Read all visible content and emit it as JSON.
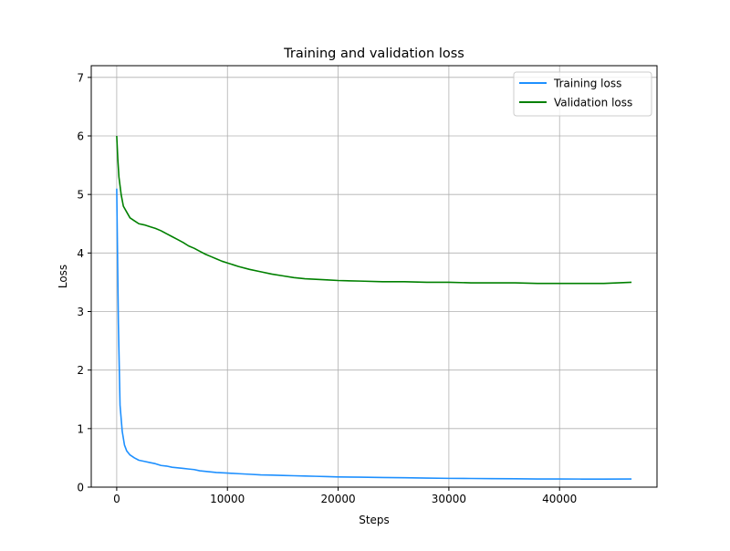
{
  "chart_data": {
    "type": "line",
    "title": "Training and validation loss",
    "xlabel": "Steps",
    "ylabel": "Loss",
    "xlim": [
      -2300,
      48800
    ],
    "ylim": [
      0,
      7.2
    ],
    "xticks": [
      0,
      10000,
      20000,
      30000,
      40000
    ],
    "yticks": [
      0,
      1,
      2,
      3,
      4,
      5,
      6,
      7
    ],
    "grid": true,
    "legend_position": "top-right",
    "series": [
      {
        "name": "Training loss",
        "color": "#1e90ff",
        "x": [
          0,
          150,
          300,
          500,
          700,
          900,
          1200,
          1600,
          2000,
          2500,
          3000,
          3500,
          4000,
          4500,
          5000,
          5500,
          6000,
          6500,
          7000,
          7500,
          8000,
          9000,
          10000,
          11000,
          12000,
          13000,
          14000,
          15000,
          16000,
          17000,
          18000,
          19000,
          20000,
          22000,
          24000,
          26000,
          28000,
          30000,
          32000,
          34000,
          36000,
          38000,
          40000,
          42000,
          44000,
          46500
        ],
        "y": [
          5.1,
          2.8,
          1.4,
          0.95,
          0.72,
          0.62,
          0.55,
          0.5,
          0.46,
          0.44,
          0.42,
          0.4,
          0.37,
          0.36,
          0.34,
          0.33,
          0.32,
          0.31,
          0.3,
          0.28,
          0.27,
          0.25,
          0.24,
          0.23,
          0.22,
          0.21,
          0.205,
          0.2,
          0.195,
          0.19,
          0.185,
          0.18,
          0.175,
          0.17,
          0.165,
          0.16,
          0.155,
          0.15,
          0.148,
          0.145,
          0.143,
          0.14,
          0.14,
          0.138,
          0.137,
          0.14
        ]
      },
      {
        "name": "Validation loss",
        "color": "#008000",
        "x": [
          0,
          100,
          200,
          400,
          600,
          900,
          1200,
          1600,
          2000,
          2500,
          3000,
          3500,
          4000,
          4500,
          5000,
          5500,
          6000,
          6500,
          7000,
          7500,
          8000,
          8500,
          9000,
          9500,
          10000,
          11000,
          12000,
          13000,
          14000,
          15000,
          16000,
          17000,
          18000,
          19000,
          20000,
          22000,
          24000,
          26000,
          28000,
          30000,
          32000,
          34000,
          36000,
          38000,
          40000,
          42000,
          44000,
          46500
        ],
        "y": [
          6.0,
          5.6,
          5.3,
          5.0,
          4.8,
          4.7,
          4.6,
          4.55,
          4.5,
          4.48,
          4.45,
          4.42,
          4.38,
          4.33,
          4.28,
          4.23,
          4.18,
          4.12,
          4.08,
          4.03,
          3.98,
          3.94,
          3.9,
          3.86,
          3.83,
          3.77,
          3.72,
          3.68,
          3.64,
          3.61,
          3.58,
          3.56,
          3.55,
          3.54,
          3.53,
          3.52,
          3.51,
          3.51,
          3.5,
          3.5,
          3.49,
          3.49,
          3.49,
          3.48,
          3.48,
          3.48,
          3.48,
          3.5
        ]
      }
    ]
  }
}
